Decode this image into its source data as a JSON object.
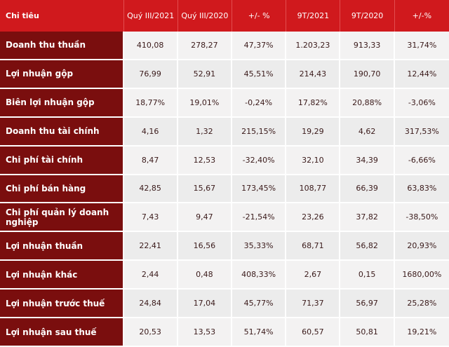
{
  "table": {
    "headers": [
      "Chỉ tiêu",
      "Quý III/2021",
      "Quý III/2020",
      "+/- %",
      "9T/2021",
      "9T/2020",
      "+/-%"
    ],
    "rows": [
      {
        "label": "Doanh thu thuần",
        "values": [
          "410,08",
          "278,27",
          "47,37%",
          "1.203,23",
          "913,33",
          "31,74%"
        ]
      },
      {
        "label": "Lợi nhuận gộp",
        "values": [
          "76,99",
          "52,91",
          "45,51%",
          "214,43",
          "190,70",
          "12,44%"
        ]
      },
      {
        "label": "Biên lợi nhuận gộp",
        "values": [
          "18,77%",
          "19,01%",
          "-0,24%",
          "17,82%",
          "20,88%",
          "-3,06%"
        ]
      },
      {
        "label": "Doanh thu tài chính",
        "values": [
          "4,16",
          "1,32",
          "215,15%",
          "19,29",
          "4,62",
          "317,53%"
        ]
      },
      {
        "label": "Chi phí tài chính",
        "values": [
          "8,47",
          "12,53",
          "-32,40%",
          "32,10",
          "34,39",
          "-6,66%"
        ]
      },
      {
        "label": "Chi phí bán hàng",
        "values": [
          "42,85",
          "15,67",
          "173,45%",
          "108,77",
          "66,39",
          "63,83%"
        ]
      },
      {
        "label": "Chi phí quản lý doanh nghiệp",
        "values": [
          "7,43",
          "9,47",
          "-21,54%",
          "23,26",
          "37,82",
          "-38,50%"
        ]
      },
      {
        "label": "Lợi nhuận thuần",
        "values": [
          "22,41",
          "16,56",
          "35,33%",
          "68,71",
          "56,82",
          "20,93%"
        ]
      },
      {
        "label": "Lợi nhuận khác",
        "values": [
          "2,44",
          "0,48",
          "408,33%",
          "2,67",
          "0,15",
          "1680,00%"
        ]
      },
      {
        "label": "Lợi nhuận trước thuế",
        "values": [
          "24,84",
          "17,04",
          "45,77%",
          "71,37",
          "56,97",
          "25,28%"
        ]
      },
      {
        "label": "Lợi nhuận sau thuế",
        "values": [
          "20,53",
          "13,53",
          "51,74%",
          "60,57",
          "50,81",
          "19,21%"
        ]
      }
    ]
  },
  "colors": {
    "header_bg": "#d0191d",
    "label_bg": "#7a0e0e",
    "cell_bg": "#f3f2f2"
  }
}
